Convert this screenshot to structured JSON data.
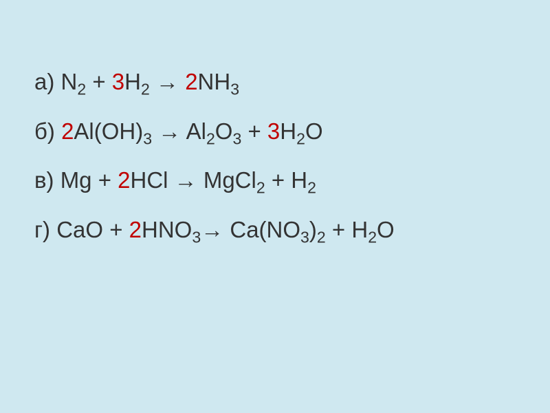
{
  "background_color": "#cfe8f0",
  "text_color": "#333333",
  "coefficient_color": "#c00000",
  "font_size": 33,
  "line_gap": 28,
  "equations": [
    {
      "label": "а)",
      "parts": [
        {
          "type": "text",
          "value": "а)  N"
        },
        {
          "type": "sub",
          "value": "2"
        },
        {
          "type": "text",
          "value": " + "
        },
        {
          "type": "coef",
          "value": "3"
        },
        {
          "type": "text",
          "value": "H"
        },
        {
          "type": "sub",
          "value": "2"
        },
        {
          "type": "text",
          "value": " → "
        },
        {
          "type": "coef",
          "value": "2"
        },
        {
          "type": "text",
          "value": "NH"
        },
        {
          "type": "sub",
          "value": "3"
        }
      ]
    },
    {
      "label": "б)",
      "parts": [
        {
          "type": "text",
          "value": "б)  "
        },
        {
          "type": "coef",
          "value": "2"
        },
        {
          "type": "text",
          "value": "Al(OH)"
        },
        {
          "type": "sub",
          "value": "3"
        },
        {
          "type": "text",
          "value": " → Al"
        },
        {
          "type": "sub",
          "value": "2"
        },
        {
          "type": "text",
          "value": "O"
        },
        {
          "type": "sub",
          "value": "3"
        },
        {
          "type": "text",
          "value": " + "
        },
        {
          "type": "coef",
          "value": "3"
        },
        {
          "type": "text",
          "value": "H"
        },
        {
          "type": "sub",
          "value": "2"
        },
        {
          "type": "text",
          "value": "O"
        }
      ]
    },
    {
      "label": "в)",
      "parts": [
        {
          "type": "text",
          "value": "в) Mg + "
        },
        {
          "type": "coef",
          "value": "2"
        },
        {
          "type": "text",
          "value": "HCl → MgCl"
        },
        {
          "type": "sub",
          "value": "2"
        },
        {
          "type": "text",
          "value": " + H"
        },
        {
          "type": "sub",
          "value": "2"
        }
      ]
    },
    {
      "label": "г)",
      "parts": [
        {
          "type": "text",
          "value": "г) CaO + "
        },
        {
          "type": "coef",
          "value": "2"
        },
        {
          "type": "text",
          "value": "HNO"
        },
        {
          "type": "sub",
          "value": "3"
        },
        {
          "type": "text",
          "value": "→ Ca(NO"
        },
        {
          "type": "sub",
          "value": "3"
        },
        {
          "type": "text",
          "value": ")"
        },
        {
          "type": "sub",
          "value": "2"
        },
        {
          "type": "text",
          "value": " + H"
        },
        {
          "type": "sub",
          "value": "2"
        },
        {
          "type": "text",
          "value": "O"
        }
      ]
    }
  ]
}
